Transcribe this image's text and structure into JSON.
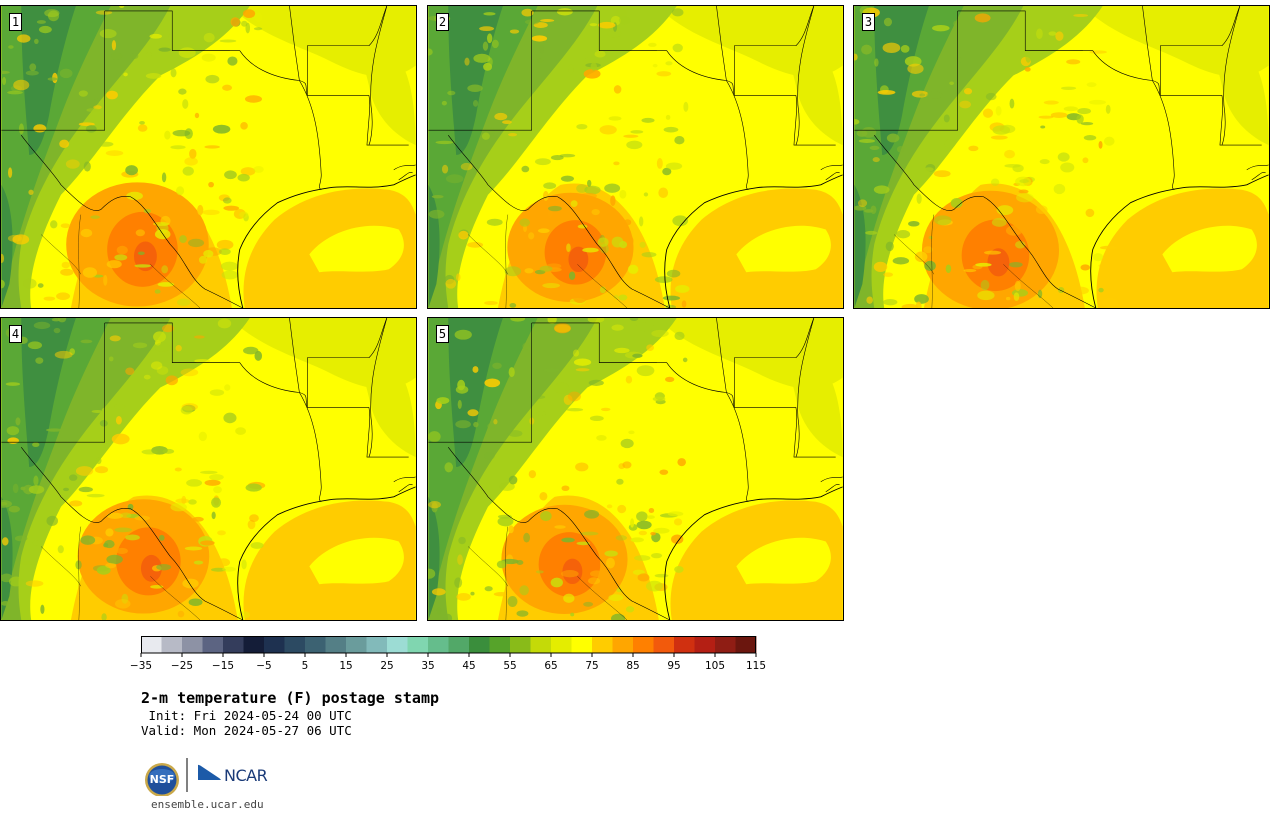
{
  "figure": {
    "title": "2-m temperature (F) postage stamp",
    "init": " Init: Fri 2024-05-24 00 UTC",
    "valid": "Valid: Mon 2024-05-27 06 UTC",
    "website": "ensemble.ucar.edu",
    "logos": {
      "nsf": "NSF",
      "ncar": "NCAR"
    }
  },
  "panels": [
    {
      "label": "1",
      "hot_level": 0.85
    },
    {
      "label": "2",
      "hot_level": 0.7
    },
    {
      "label": "3",
      "hot_level": 0.8
    },
    {
      "label": "4",
      "hot_level": 0.75
    },
    {
      "label": "5",
      "hot_level": 0.7
    }
  ],
  "colorbar": {
    "ticks": [
      "−35",
      "−25",
      "−15",
      "−5",
      "5",
      "15",
      "25",
      "35",
      "45",
      "55",
      "65",
      "75",
      "85",
      "95",
      "105",
      "115"
    ],
    "colors": [
      "#e8eaef",
      "#b7bac6",
      "#8d92a5",
      "#5c6482",
      "#343d5c",
      "#141d38",
      "#1e3150",
      "#2c4a62",
      "#3c6272",
      "#547f86",
      "#6a9c9c",
      "#82baba",
      "#9cdcd4",
      "#80d6b0",
      "#65bd8c",
      "#52a868",
      "#3a8e3c",
      "#56a32a",
      "#89bb19",
      "#c4da08",
      "#e4ed00",
      "#ffff00",
      "#ffcc00",
      "#ffa600",
      "#ff8000",
      "#f25a0c",
      "#d03010",
      "#b41f14",
      "#8f1d14",
      "#6b160e"
    ]
  }
}
